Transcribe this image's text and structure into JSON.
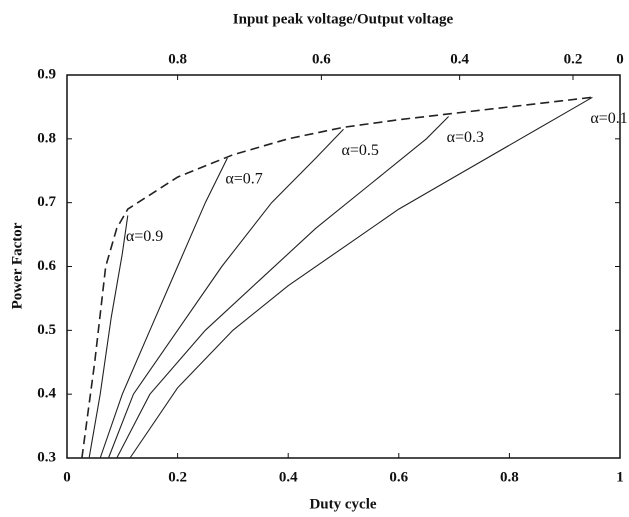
{
  "chart_data": {
    "type": "line",
    "x_label": "Duty cycle",
    "y_label": "Power Factor",
    "x2_label": "Input peak voltage/Output voltage",
    "xlim": [
      0,
      1
    ],
    "ylim": [
      0.3,
      0.9
    ],
    "xticks": [
      0,
      0.2,
      0.4,
      0.6,
      0.8,
      1
    ],
    "yticks": [
      0.3,
      0.4,
      0.5,
      0.6,
      0.7,
      0.8,
      0.9
    ],
    "x2ticks": [
      {
        "value": 0.8,
        "x": 0.2
      },
      {
        "value": 0.6,
        "x": 0.46
      },
      {
        "value": 0.4,
        "x": 0.71
      },
      {
        "value": 0.2,
        "x": 0.915
      },
      {
        "value": 0,
        "x": 1
      }
    ],
    "series": [
      {
        "name": "α=0.1",
        "color": "#222",
        "x": [
          0.114,
          0.2,
          0.3,
          0.4,
          0.5,
          0.6,
          0.7,
          0.8,
          0.9,
          0.95
        ],
        "values": [
          0.3,
          0.41,
          0.5,
          0.57,
          0.63,
          0.69,
          0.74,
          0.79,
          0.84,
          0.865
        ]
      },
      {
        "name": "α=0.3",
        "color": "#222",
        "x": [
          0.09,
          0.15,
          0.25,
          0.35,
          0.45,
          0.55,
          0.65,
          0.69
        ],
        "values": [
          0.3,
          0.4,
          0.5,
          0.58,
          0.66,
          0.73,
          0.8,
          0.835
        ]
      },
      {
        "name": "α=0.5",
        "color": "#222",
        "x": [
          0.075,
          0.12,
          0.2,
          0.28,
          0.37,
          0.45,
          0.5
        ],
        "values": [
          0.3,
          0.4,
          0.5,
          0.6,
          0.7,
          0.77,
          0.815
        ]
      },
      {
        "name": "α=0.7",
        "color": "#222",
        "x": [
          0.06,
          0.1,
          0.15,
          0.2,
          0.25,
          0.29
        ],
        "values": [
          0.3,
          0.4,
          0.5,
          0.6,
          0.7,
          0.77
        ]
      },
      {
        "name": "α=0.9",
        "color": "#222",
        "x": [
          0.04,
          0.06,
          0.08,
          0.1,
          0.11
        ],
        "values": [
          0.3,
          0.4,
          0.52,
          0.62,
          0.68
        ]
      },
      {
        "color": "#222",
        "dashed": true,
        "x": [
          0.027,
          0.05,
          0.07,
          0.09,
          0.11,
          0.2,
          0.3,
          0.4,
          0.5,
          0.6,
          0.7,
          0.8,
          0.95
        ],
        "values": [
          0.3,
          0.45,
          0.6,
          0.66,
          0.69,
          0.74,
          0.775,
          0.8,
          0.818,
          0.83,
          0.84,
          0.85,
          0.865
        ]
      }
    ]
  }
}
